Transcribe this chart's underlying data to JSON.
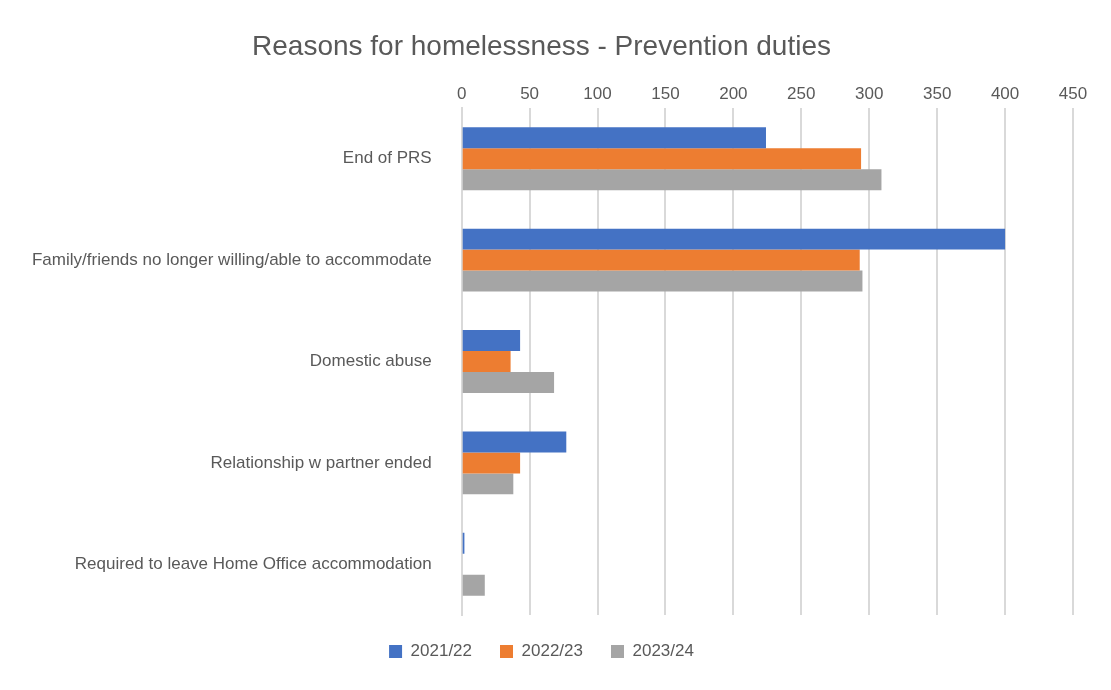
{
  "chart_data": {
    "type": "bar",
    "orientation": "horizontal",
    "title": "Reasons for homelessness - Prevention duties",
    "categories": [
      "End of PRS",
      "Family/friends no longer willing/able to accommodate",
      "Domestic abuse",
      "Relationship w partner ended",
      "Required to leave Home Office accommodation"
    ],
    "series": [
      {
        "name": "2021/22",
        "color": "#4472c4",
        "values": [
          224,
          400,
          43,
          77,
          2
        ]
      },
      {
        "name": "2022/23",
        "color": "#ed7d31",
        "values": [
          294,
          293,
          36,
          43,
          0
        ]
      },
      {
        "name": "2023/24",
        "color": "#a5a5a5",
        "values": [
          309,
          295,
          68,
          38,
          17
        ]
      }
    ],
    "xlim": [
      0,
      450
    ],
    "xticks": [
      0,
      50,
      100,
      150,
      200,
      250,
      300,
      350,
      400,
      450
    ],
    "grid": "x",
    "legend": "bottom"
  }
}
